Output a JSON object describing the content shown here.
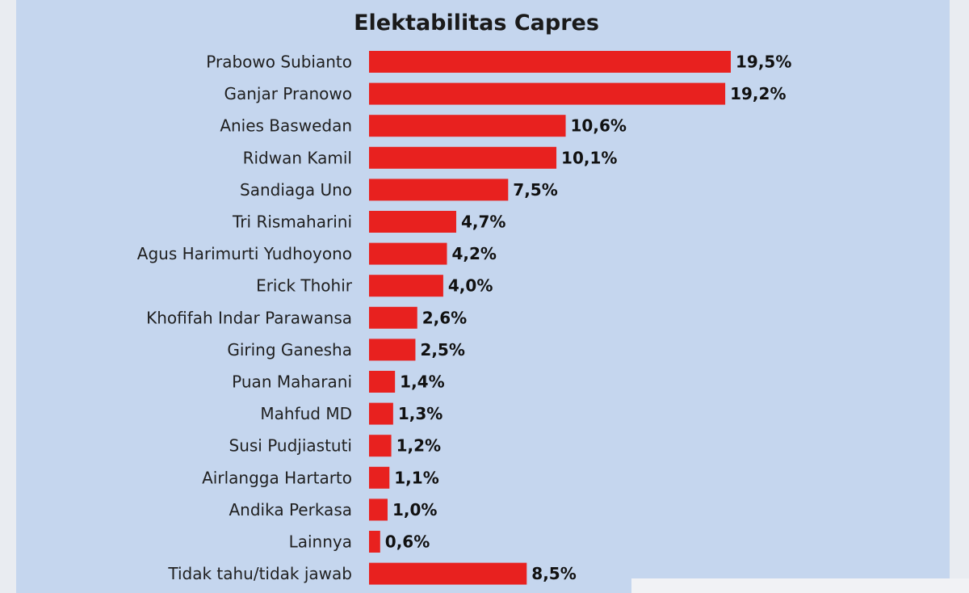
{
  "chart_data": {
    "type": "bar",
    "orientation": "horizontal",
    "title": "Elektabilitas Capres",
    "categories": [
      "Prabowo Subianto",
      "Ganjar Pranowo",
      "Anies Baswedan",
      "Ridwan Kamil",
      "Sandiaga Uno",
      "Tri Rismaharini",
      "Agus Harimurti Yudhoyono",
      "Erick Thohir",
      "Khofifah Indar Parawansa",
      "Giring Ganesha",
      "Puan Maharani",
      "Mahfud MD",
      "Susi Pudjiastuti",
      "Airlangga Hartarto",
      "Andika Perkasa",
      "Lainnya",
      "Tidak tahu/tidak jawab"
    ],
    "values": [
      19.5,
      19.2,
      10.6,
      10.1,
      7.5,
      4.7,
      4.2,
      4.0,
      2.6,
      2.5,
      1.4,
      1.3,
      1.2,
      1.1,
      1.0,
      0.6,
      8.5
    ],
    "value_labels": [
      "19,5%",
      "19,2%",
      "10,6%",
      "10,1%",
      "7,5%",
      "4,7%",
      "4,2%",
      "4,0%",
      "2,6%",
      "2,5%",
      "1,4%",
      "1,3%",
      "1,2%",
      "1,1%",
      "1,0%",
      "0,6%",
      "8,5%"
    ],
    "unit": "%",
    "xlim": [
      0,
      19.5
    ],
    "grid": false,
    "legend": "none",
    "bar_color": "#e8211f",
    "background_color": "#c5d6ee"
  }
}
